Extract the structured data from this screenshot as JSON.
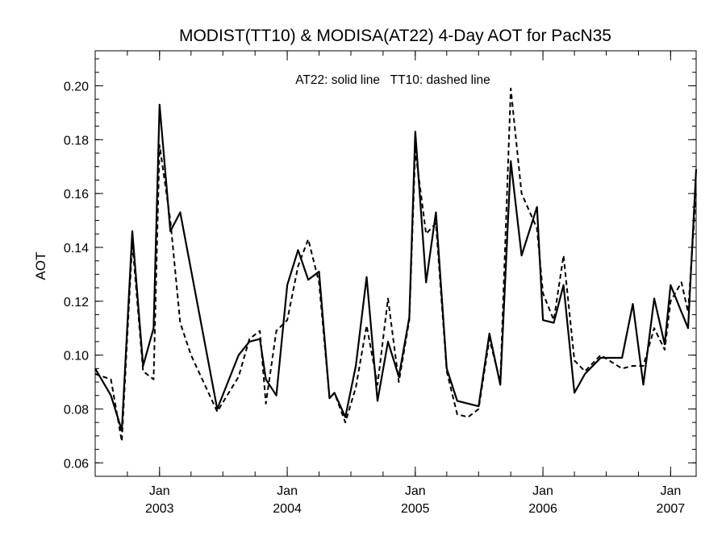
{
  "chart_data": {
    "type": "line",
    "title": "MODIST(TT10) & MODISA(AT22) 4-Day AOT for PacN35",
    "xlabel": "",
    "ylabel": "AOT",
    "annotation": "AT22: solid line   TT10: dashed line",
    "xlim": [
      "2002-07-01",
      "2007-03-15"
    ],
    "ylim": [
      0.055,
      0.213
    ],
    "y_ticks": [
      0.06,
      0.08,
      0.1,
      0.12,
      0.14,
      0.16,
      0.18,
      0.2
    ],
    "y_tick_labels": [
      "0.06",
      "0.08",
      "0.10",
      "0.12",
      "0.14",
      "0.16",
      "0.18",
      "0.20"
    ],
    "x_ticks": [
      {
        "date": "2003-01-01",
        "month": "Jan",
        "year": "2003"
      },
      {
        "date": "2004-01-01",
        "month": "Jan",
        "year": "2004"
      },
      {
        "date": "2005-01-01",
        "month": "Jan",
        "year": "2005"
      },
      {
        "date": "2006-01-01",
        "month": "Jan",
        "year": "2006"
      },
      {
        "date": "2007-01-01",
        "month": "Jan",
        "year": "2007"
      }
    ],
    "grid": false,
    "series": [
      {
        "style": "solid",
        "x": [
          "2002-07-01",
          "2002-08-15",
          "2002-09-15",
          "2002-10-15",
          "2002-11-15",
          "2002-12-15",
          "2003-01-01",
          "2003-02-01",
          "2003-03-01",
          "2003-06-15",
          "2003-08-15",
          "2003-09-15",
          "2003-10-15",
          "2003-11-01",
          "2003-12-01",
          "2004-01-01",
          "2004-02-01",
          "2004-03-01",
          "2004-04-01",
          "2004-05-01",
          "2004-05-15",
          "2004-06-15",
          "2004-07-15",
          "2004-08-15",
          "2004-09-15",
          "2004-10-15",
          "2004-11-15",
          "2004-12-15",
          "2005-01-01",
          "2005-02-01",
          "2005-03-01",
          "2005-04-01",
          "2005-05-01",
          "2005-06-01",
          "2005-07-01",
          "2005-08-01",
          "2005-09-01",
          "2005-10-01",
          "2005-11-01",
          "2005-12-15",
          "2006-01-01",
          "2006-02-01",
          "2006-03-01",
          "2006-04-01",
          "2006-05-01",
          "2006-06-15",
          "2006-08-15",
          "2006-09-15",
          "2006-10-15",
          "2006-11-15",
          "2006-12-15",
          "2007-01-01",
          "2007-02-01",
          "2007-02-20",
          "2007-03-15"
        ],
        "values": [
          0.095,
          0.085,
          0.072,
          0.146,
          0.096,
          0.11,
          0.193,
          0.146,
          0.153,
          0.08,
          0.1,
          0.105,
          0.106,
          0.091,
          0.085,
          0.126,
          0.139,
          0.128,
          0.131,
          0.084,
          0.086,
          0.077,
          0.096,
          0.129,
          0.083,
          0.105,
          0.092,
          0.114,
          0.183,
          0.127,
          0.153,
          0.095,
          0.083,
          0.082,
          0.081,
          0.108,
          0.089,
          0.172,
          0.137,
          0.155,
          0.113,
          0.112,
          0.126,
          0.086,
          0.093,
          0.099,
          0.099,
          0.119,
          0.089,
          0.121,
          0.104,
          0.126,
          0.116,
          0.11,
          0.169
        ]
      },
      {
        "style": "dashed",
        "x": [
          "2002-07-01",
          "2002-08-15",
          "2002-09-15",
          "2002-10-15",
          "2002-11-15",
          "2002-12-15",
          "2003-01-01",
          "2003-02-01",
          "2003-03-01",
          "2003-04-01",
          "2003-06-15",
          "2003-08-15",
          "2003-09-15",
          "2003-10-15",
          "2003-11-01",
          "2003-12-01",
          "2004-01-01",
          "2004-02-01",
          "2004-03-01",
          "2004-04-01",
          "2004-05-01",
          "2004-05-15",
          "2004-06-15",
          "2004-07-15",
          "2004-08-15",
          "2004-09-15",
          "2004-10-15",
          "2004-11-15",
          "2004-12-15",
          "2005-01-01",
          "2005-02-01",
          "2005-03-01",
          "2005-04-01",
          "2005-05-01",
          "2005-06-01",
          "2005-07-01",
          "2005-08-01",
          "2005-09-01",
          "2005-10-01",
          "2005-11-01",
          "2005-12-15",
          "2006-01-01",
          "2006-02-01",
          "2006-03-01",
          "2006-04-01",
          "2006-05-01",
          "2006-06-15",
          "2006-08-15",
          "2006-09-15",
          "2006-10-15",
          "2006-11-15",
          "2006-12-15",
          "2007-01-01",
          "2007-02-01",
          "2007-02-20",
          "2007-03-15"
        ],
        "values": [
          0.093,
          0.091,
          0.068,
          0.142,
          0.094,
          0.091,
          0.178,
          0.15,
          0.112,
          0.1,
          0.079,
          0.092,
          0.106,
          0.109,
          0.082,
          0.109,
          0.113,
          0.133,
          0.143,
          0.127,
          0.084,
          0.086,
          0.075,
          0.088,
          0.111,
          0.089,
          0.121,
          0.09,
          0.113,
          0.176,
          0.145,
          0.149,
          0.094,
          0.078,
          0.077,
          0.08,
          0.106,
          0.09,
          0.199,
          0.16,
          0.147,
          0.123,
          0.113,
          0.137,
          0.098,
          0.094,
          0.1,
          0.095,
          0.096,
          0.096,
          0.11,
          0.102,
          0.12,
          0.127,
          0.116,
          0.161
        ]
      }
    ]
  }
}
